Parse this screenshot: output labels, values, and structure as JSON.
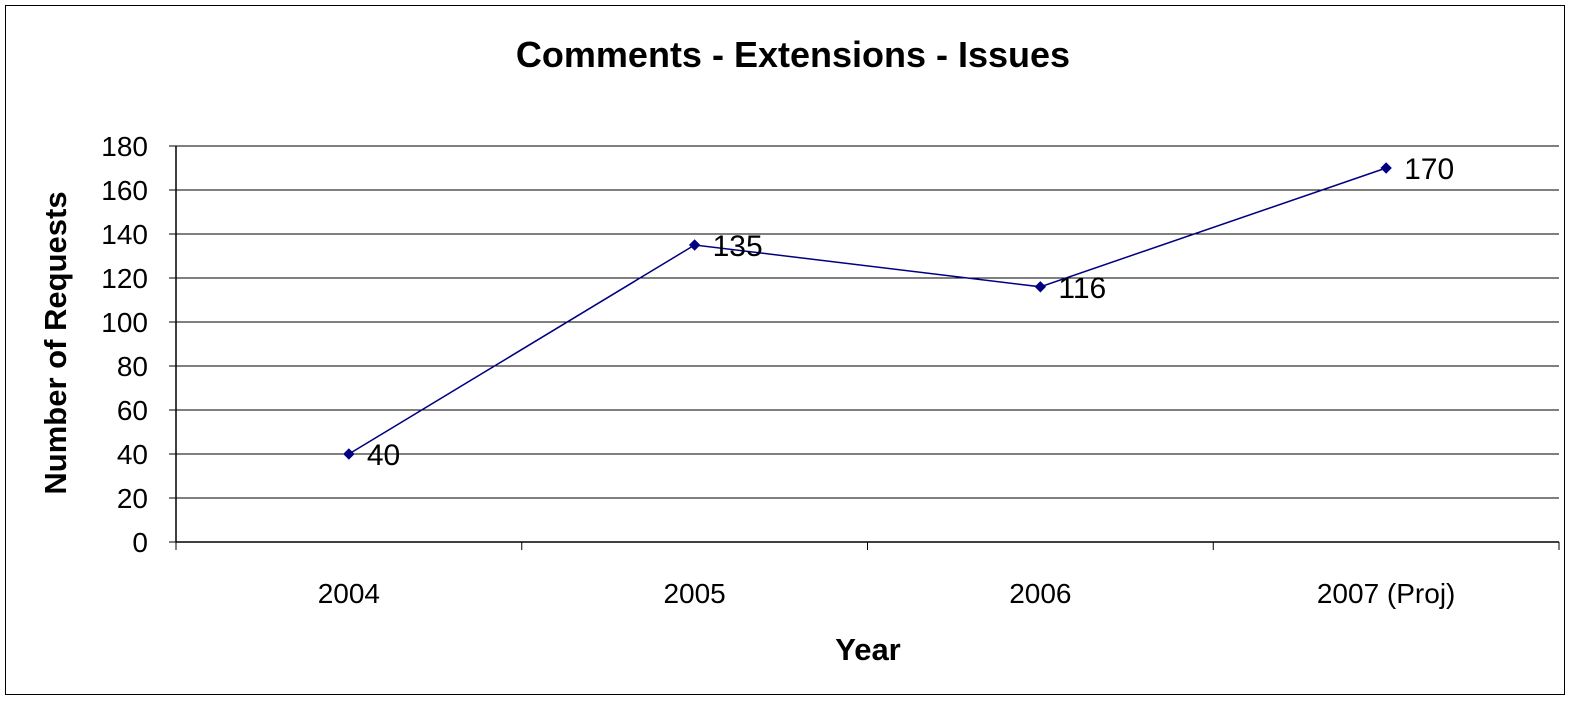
{
  "chart_data": {
    "type": "line",
    "title": "Comments - Extensions - Issues",
    "xlabel": "Year",
    "ylabel": "Number of Requests",
    "categories": [
      "2004",
      "2005",
      "2006",
      "2007 (Proj)"
    ],
    "series": [
      {
        "values": [
          40,
          135,
          116,
          170
        ],
        "color": "#000080"
      }
    ],
    "data_labels": [
      "40",
      "135",
      "116",
      "170"
    ],
    "ylim": [
      0,
      180
    ],
    "yticks": [
      0,
      20,
      40,
      60,
      80,
      100,
      120,
      140,
      160,
      180
    ],
    "ytick_labels": [
      "0",
      "20",
      "40",
      "60",
      "80",
      "100",
      "120",
      "140",
      "160",
      "180"
    ],
    "grid": true,
    "legend": "none",
    "marker": "diamond"
  }
}
